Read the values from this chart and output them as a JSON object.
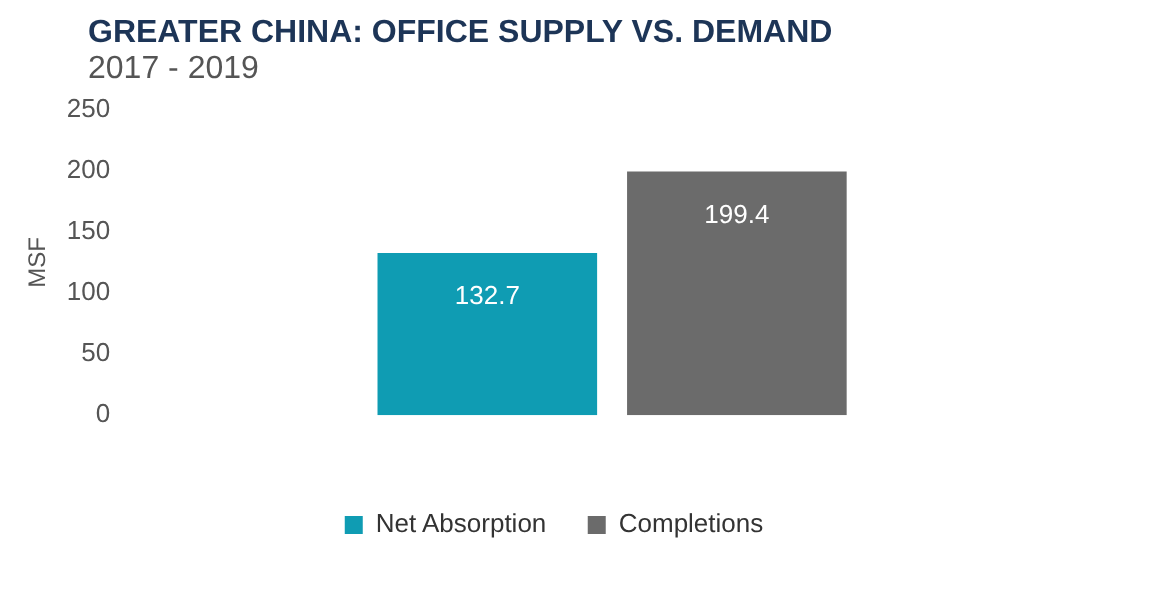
{
  "chart_data": {
    "type": "bar",
    "title": "GREATER CHINA: OFFICE SUPPLY VS. DEMAND",
    "subtitle": "2017 - 2019",
    "ylabel": "MSF",
    "categories": [
      null
    ],
    "series": [
      {
        "name": "Net Absorption",
        "color": "#0f9cb3",
        "values": [
          132.7
        ]
      },
      {
        "name": "Completions",
        "color": "#6b6b6b",
        "values": [
          199.4
        ]
      }
    ],
    "ylim": [
      0,
      250
    ],
    "yticks": [
      0,
      50,
      100,
      150,
      200,
      250
    ],
    "grid": false,
    "legend": "bottom",
    "data_labels": true
  }
}
